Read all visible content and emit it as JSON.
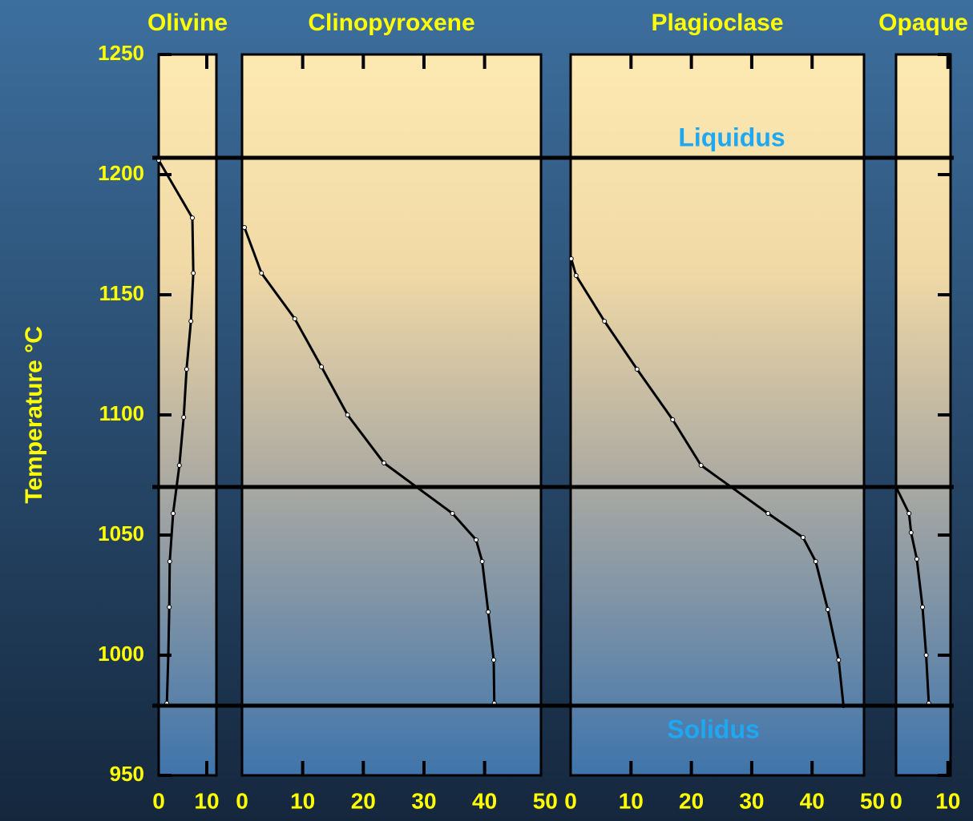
{
  "chart_data": [
    {
      "type": "line",
      "title": "Olivine",
      "ylabel": "Temperature °C",
      "x": [
        0,
        7,
        7.2,
        6.7,
        5.8,
        5.2,
        4.3,
        3,
        2.3,
        2.2,
        2,
        1.7
      ],
      "values": [
        1206,
        1182,
        1159,
        1139,
        1119,
        1099,
        1079,
        1059,
        1039,
        1020,
        1000,
        980
      ],
      "xlim": [
        0,
        12
      ],
      "xticks": [
        0,
        10
      ],
      "ylim": [
        950,
        1250
      ],
      "yticks": [
        950,
        1000,
        1050,
        1100,
        1150,
        1200,
        1250
      ],
      "hlines": [
        {
          "value": 1207,
          "label": "Liquidus"
        },
        {
          "value": 1070
        },
        {
          "value": 979,
          "label": "Solidus"
        }
      ]
    },
    {
      "type": "line",
      "title": "Clinopyroxene",
      "x": [
        0.4,
        3.2,
        8.7,
        13.1,
        17.4,
        23.4,
        34.7,
        38.6,
        39.6,
        40.6,
        41.5,
        41.6
      ],
      "values": [
        1178,
        1159,
        1140,
        1120,
        1100,
        1080,
        1059,
        1048,
        1039,
        1018,
        998,
        980
      ],
      "xlim": [
        0,
        49.3
      ],
      "xticks": [
        0,
        10,
        20,
        30,
        40,
        50
      ],
      "ylim": [
        950,
        1250
      ]
    },
    {
      "type": "line",
      "title": "Plagioclase",
      "x": [
        0.1,
        0.9,
        5.6,
        11,
        16.9,
        21.6,
        32.7,
        38.5,
        40.6,
        42.6,
        44.4,
        45.2
      ],
      "values": [
        1165,
        1158,
        1139,
        1119,
        1098,
        1079,
        1059,
        1049,
        1039,
        1019,
        998,
        979
      ],
      "xlim": [
        0,
        48.6
      ],
      "xticks": [
        0,
        10,
        20,
        30,
        40,
        50
      ],
      "ylim": [
        950,
        1250
      ]
    },
    {
      "type": "line",
      "title": "Opaque",
      "x": [
        0,
        2.5,
        2.9,
        4,
        5.1,
        5.8,
        6.3
      ],
      "values": [
        1070,
        1059,
        1051,
        1040,
        1020,
        1000,
        980
      ],
      "xlim": [
        0,
        10.5
      ],
      "xticks": [
        0,
        10
      ],
      "ylim": [
        950,
        1250
      ]
    }
  ]
}
